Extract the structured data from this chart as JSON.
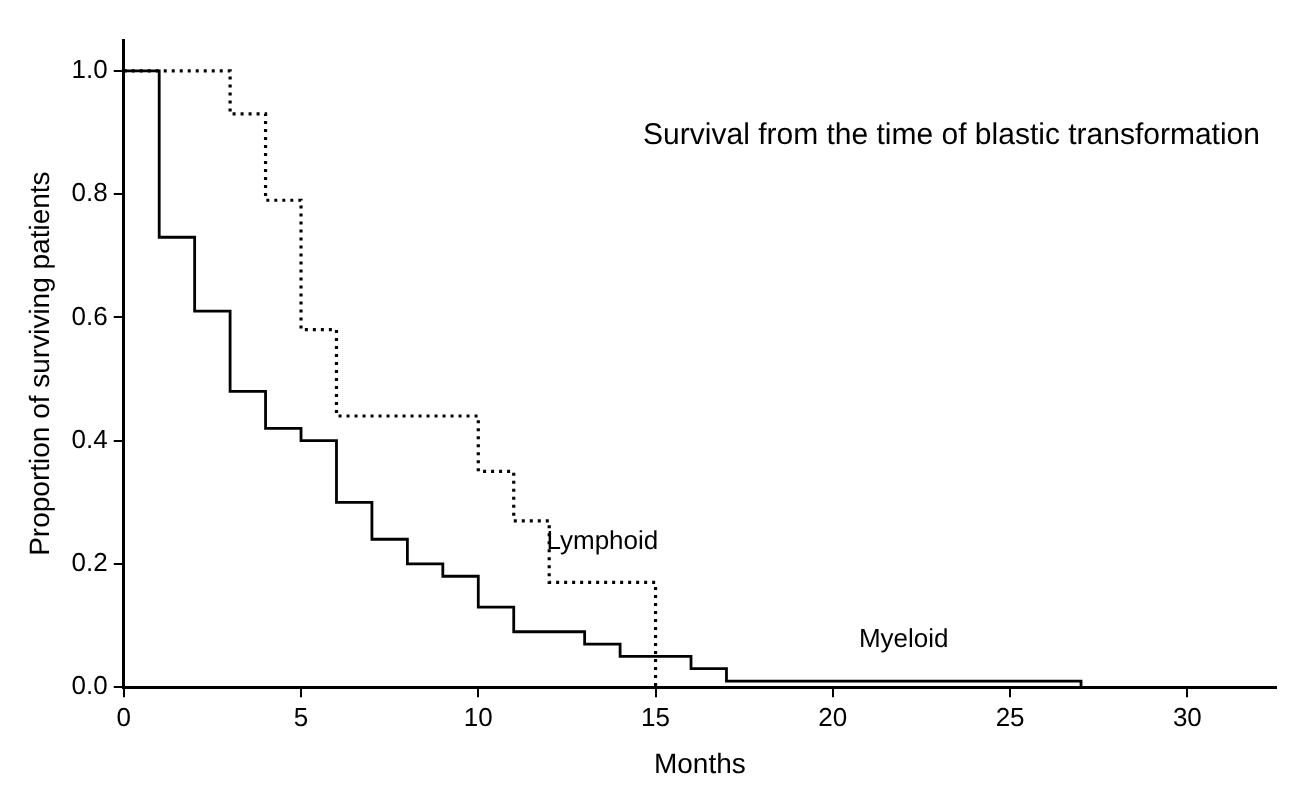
{
  "chart_data": {
    "type": "step",
    "title": "Survival from the time of blastic transformation",
    "xlabel": "Months",
    "ylabel": "Proportion of surviving patients",
    "xlim": [
      0,
      32.5
    ],
    "ylim": [
      0,
      1.05
    ],
    "xticks": [
      0,
      5,
      10,
      15,
      20,
      25,
      30
    ],
    "yticks": [
      {
        "value": 0,
        "label": "0.0"
      },
      {
        "value": 0.2,
        "label": "0.2"
      },
      {
        "value": 0.4,
        "label": "0.4"
      },
      {
        "value": 0.6,
        "label": "0.6"
      },
      {
        "value": 0.8,
        "label": "0.8"
      },
      {
        "value": 1,
        "label": "1.0"
      }
    ],
    "grid": false,
    "legend": false,
    "series": [
      {
        "name": "Lymphoid",
        "color": "#000000",
        "line_style": "dotted",
        "x": [
          0,
          3,
          4,
          5,
          6,
          10,
          11,
          12,
          15
        ],
        "values": [
          1.0,
          0.93,
          0.79,
          0.58,
          0.44,
          0.35,
          0.27,
          0.17,
          0.0
        ]
      },
      {
        "name": "Myeloid",
        "color": "#000000",
        "line_style": "solid",
        "x": [
          0,
          1,
          2,
          3,
          4,
          5,
          6,
          7,
          8,
          9,
          10,
          11,
          12,
          13,
          14,
          15,
          16,
          17,
          27
        ],
        "values": [
          1.0,
          0.73,
          0.61,
          0.48,
          0.42,
          0.4,
          0.3,
          0.24,
          0.2,
          0.18,
          0.13,
          0.09,
          0.09,
          0.07,
          0.05,
          0.05,
          0.03,
          0.01,
          0.0
        ]
      }
    ]
  }
}
